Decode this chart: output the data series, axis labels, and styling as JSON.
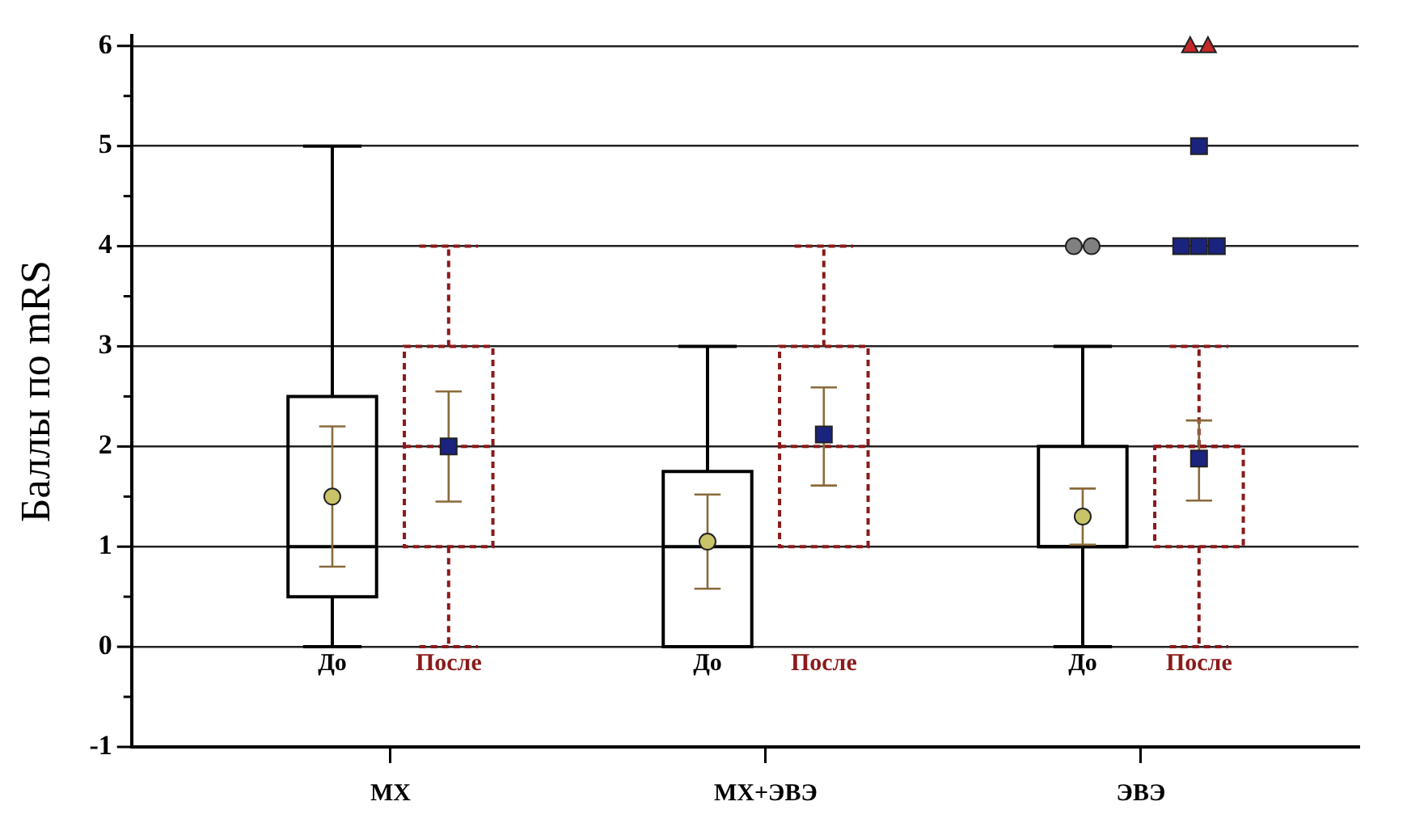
{
  "chart_data": {
    "type": "box",
    "ylabel": "Баллы по mRS",
    "categories": [
      "МХ",
      "МХ+ЭВЭ",
      "ЭВЭ"
    ],
    "series": [
      {
        "name": "До",
        "color": "#000000",
        "line_style": "solid",
        "boxes": [
          {
            "low": 0,
            "q1": 0.5,
            "median": 1,
            "q3": 2.5,
            "high": 5
          },
          {
            "low": 0,
            "q1": 0,
            "median": 1,
            "q3": 1.75,
            "high": 3
          },
          {
            "low": 0,
            "q1": 1,
            "median": 1,
            "q3": 2,
            "high": 3,
            "outliers": [
              4,
              4
            ]
          }
        ]
      },
      {
        "name": "После",
        "color": "#8b1a1a",
        "line_style": "dashed",
        "boxes": [
          {
            "low": 0,
            "q1": 1,
            "median": 2,
            "q3": 3,
            "high": 4
          },
          {
            "low": 1,
            "q1": 1,
            "median": 2,
            "q3": 3,
            "high": 4
          },
          {
            "low": 0,
            "q1": 1,
            "median": 2,
            "q3": 2,
            "high": 3,
            "outliers": [
              4,
              4,
              4,
              5,
              6,
              6
            ]
          }
        ]
      },
      {
        "type": "scatter",
        "color": "#c9c46a",
        "marker": "circle",
        "x": [
          "МХ",
          "МХ+ЭВЭ",
          "ЭВЭ"
        ],
        "values": [
          1.5,
          1.05,
          1.3
        ],
        "errors": [
          [
            0.8,
            2.2
          ],
          [
            0.58,
            1.52
          ],
          [
            1.02,
            1.58
          ]
        ]
      },
      {
        "type": "scatter",
        "color": "#1a237e",
        "marker": "square",
        "x": [
          "МХ",
          "МХ+ЭВЭ",
          "ЭВЭ"
        ],
        "values": [
          2.0,
          2.12,
          1.88
        ],
        "errors": [
          [
            1.45,
            2.55
          ],
          [
            1.61,
            2.59
          ],
          [
            1.46,
            2.26
          ]
        ]
      }
    ],
    "ylim": [
      -1,
      6.1
    ],
    "yticks": [
      -1,
      {
        "value": -0.5,
        "label": null
      },
      0,
      {
        "value": 0.5,
        "label": null
      },
      1,
      {
        "value": 1.5,
        "label": null
      },
      2,
      {
        "value": 2.5,
        "label": null
      },
      3,
      {
        "value": 3.5,
        "label": null
      },
      4,
      {
        "value": 4.5,
        "label": null
      },
      5,
      {
        "value": 5.5,
        "label": null
      },
      6
    ],
    "grid": "y"
  }
}
